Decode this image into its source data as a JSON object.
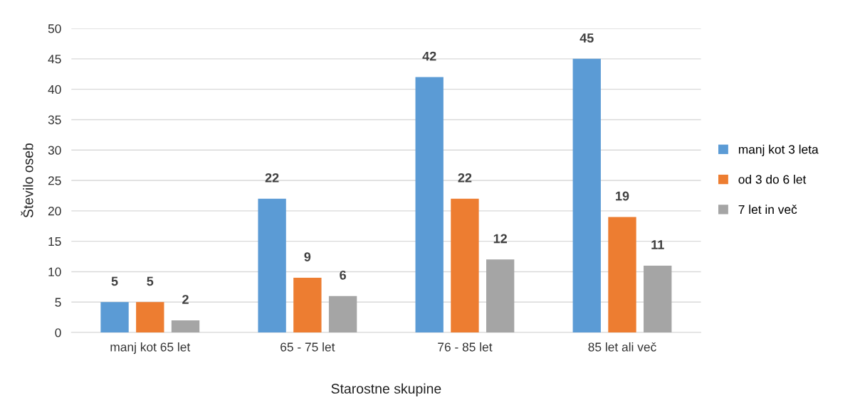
{
  "chart_data": {
    "type": "bar",
    "xlabel": "Starostne skupine",
    "ylabel": "Število oseb",
    "categories": [
      "manj kot 65 let",
      "65 - 75 let",
      "76 - 85 let",
      "85 let ali več"
    ],
    "series": [
      {
        "name": "manj kot 3 leta",
        "color": "#5b9bd5",
        "values": [
          5,
          22,
          42,
          45
        ]
      },
      {
        "name": "od 3 do 6 let",
        "color": "#ed7d31",
        "values": [
          5,
          9,
          22,
          19
        ]
      },
      {
        "name": "7 let in več",
        "color": "#a5a5a5",
        "values": [
          2,
          6,
          12,
          11
        ]
      }
    ],
    "ylim": [
      0,
      50
    ],
    "yticks": [
      0,
      5,
      10,
      15,
      20,
      25,
      30,
      35,
      40,
      45,
      50
    ],
    "grid": "y",
    "legend": "right",
    "data_labels": true
  }
}
